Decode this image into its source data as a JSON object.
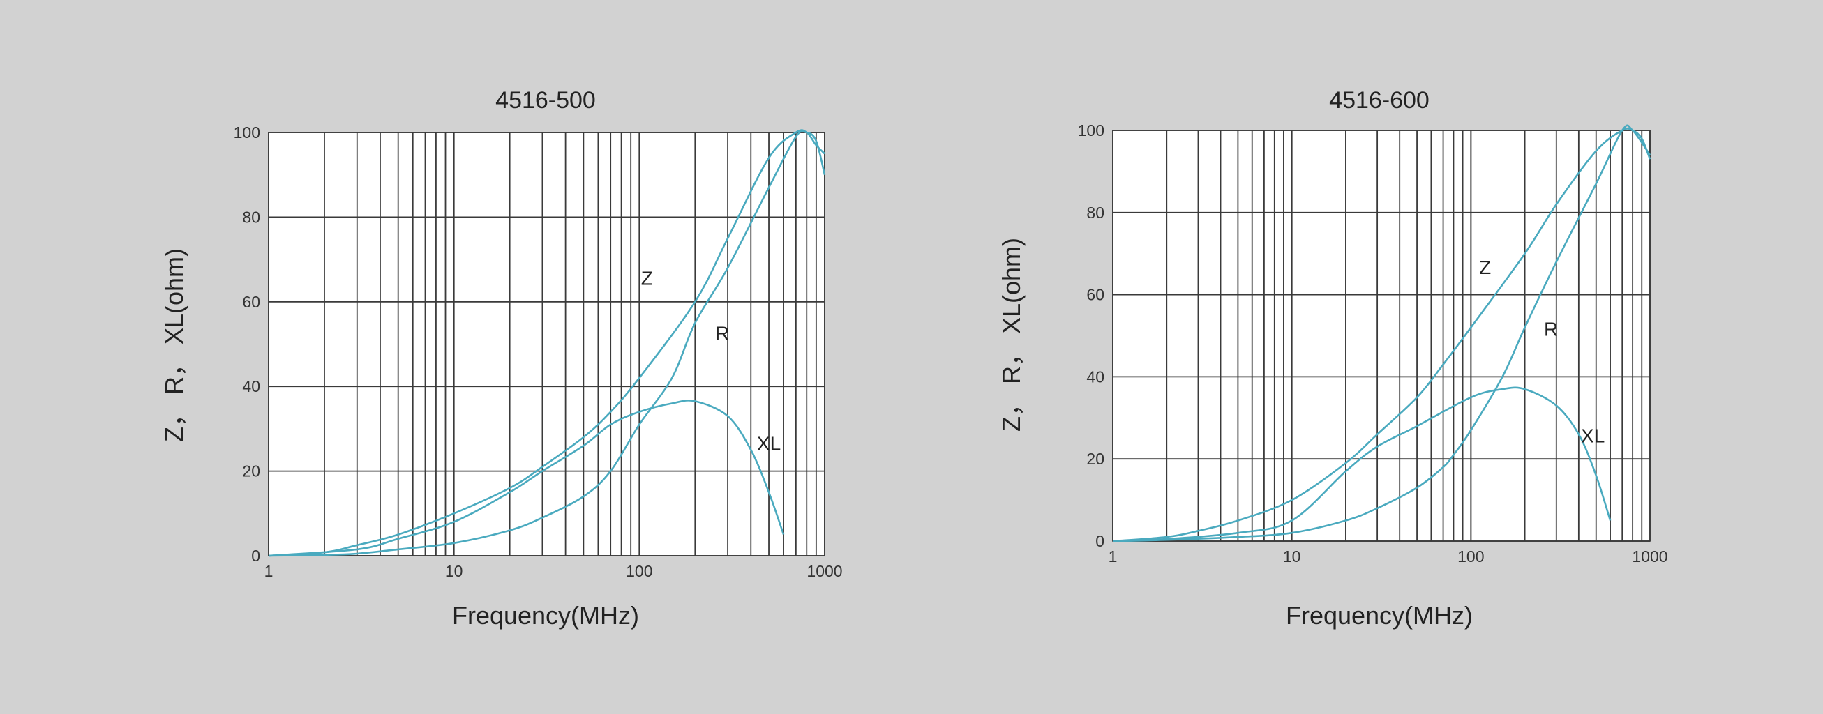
{
  "colors": {
    "background": "#d2d2d2",
    "plot_background": "#ffffff",
    "grid": "#3a3a3a",
    "curve": "#4aaabf"
  },
  "chart_data": [
    {
      "type": "line",
      "title": "4516-500",
      "xlabel": "Frequency(MHz)",
      "ylabel": "Z， R， XL(ohm)",
      "x_scale": "log",
      "xlim": [
        1,
        1000
      ],
      "ylim": [
        0,
        100
      ],
      "grid": true,
      "x_ticks": [
        1,
        10,
        100,
        1000
      ],
      "x_tick_labels": [
        "1",
        "10",
        "100",
        "1000"
      ],
      "y_ticks": [
        0,
        20,
        40,
        60,
        80,
        100
      ],
      "y_tick_labels": [
        "0",
        "20",
        "40",
        "60",
        "80",
        "100"
      ],
      "series": [
        {
          "name": "Z",
          "x": [
            1,
            2,
            3,
            5,
            10,
            20,
            30,
            50,
            70,
            100,
            200,
            300,
            500,
            700,
            800,
            900,
            1000
          ],
          "values": [
            0,
            0.8,
            2.5,
            5,
            10,
            16,
            21,
            28,
            34,
            42,
            60,
            75,
            94,
            100,
            100,
            97,
            95
          ]
        },
        {
          "name": "R",
          "x": [
            1,
            2,
            3,
            5,
            10,
            20,
            30,
            50,
            70,
            100,
            150,
            200,
            300,
            500,
            700,
            800,
            900,
            1000
          ],
          "values": [
            0,
            0.2,
            0.5,
            1.5,
            3,
            6,
            9,
            14,
            20,
            31,
            42,
            55,
            68,
            87,
            99,
            100,
            98,
            90
          ]
        },
        {
          "name": "XL",
          "x": [
            1,
            3,
            5,
            10,
            20,
            30,
            50,
            70,
            100,
            150,
            200,
            300,
            400,
            500,
            600
          ],
          "values": [
            0,
            1.5,
            4,
            8,
            15,
            20,
            26,
            31,
            34,
            36,
            36.5,
            33,
            25,
            15,
            5
          ]
        }
      ],
      "annotations": [
        {
          "text": "Z",
          "x": 110,
          "y": 64
        },
        {
          "text": "R",
          "x": 280,
          "y": 51
        },
        {
          "text": "XL",
          "x": 500,
          "y": 25
        }
      ]
    },
    {
      "type": "line",
      "title": "4516-600",
      "xlabel": "Frequency(MHz)",
      "ylabel": "Z， R， XL(ohm)",
      "x_scale": "log",
      "xlim": [
        1,
        1000
      ],
      "ylim": [
        0,
        100
      ],
      "grid": true,
      "x_ticks": [
        1,
        10,
        100,
        1000
      ],
      "x_tick_labels": [
        "1",
        "10",
        "100",
        "1000"
      ],
      "y_ticks": [
        0,
        20,
        40,
        60,
        80,
        100
      ],
      "y_tick_labels": [
        "0",
        "20",
        "40",
        "60",
        "80",
        "100"
      ],
      "series": [
        {
          "name": "Z",
          "x": [
            1,
            2,
            3,
            5,
            10,
            20,
            30,
            50,
            70,
            100,
            200,
            300,
            500,
            700,
            800,
            900,
            1000
          ],
          "values": [
            0,
            1,
            2.5,
            5,
            10,
            19,
            26,
            35,
            43,
            52,
            70,
            82,
            95,
            100,
            100,
            98,
            93
          ]
        },
        {
          "name": "R",
          "x": [
            1,
            2,
            5,
            10,
            20,
            30,
            50,
            70,
            80,
            100,
            150,
            200,
            300,
            500,
            700,
            800,
            1000
          ],
          "values": [
            0,
            0.3,
            1,
            2,
            5,
            8,
            13,
            18,
            21,
            27,
            40,
            52,
            68,
            87,
            100,
            100,
            94
          ]
        },
        {
          "name": "XL",
          "x": [
            1,
            2,
            5,
            10,
            20,
            30,
            50,
            100,
            150,
            200,
            300,
            400,
            500,
            600
          ],
          "values": [
            0,
            0.5,
            2,
            5,
            17,
            23,
            28,
            35,
            37,
            37,
            33,
            26,
            16,
            5
          ]
        }
      ],
      "annotations": [
        {
          "text": "Z",
          "x": 120,
          "y": 65
        },
        {
          "text": "R",
          "x": 280,
          "y": 50
        },
        {
          "text": "XL",
          "x": 480,
          "y": 24
        }
      ]
    }
  ]
}
